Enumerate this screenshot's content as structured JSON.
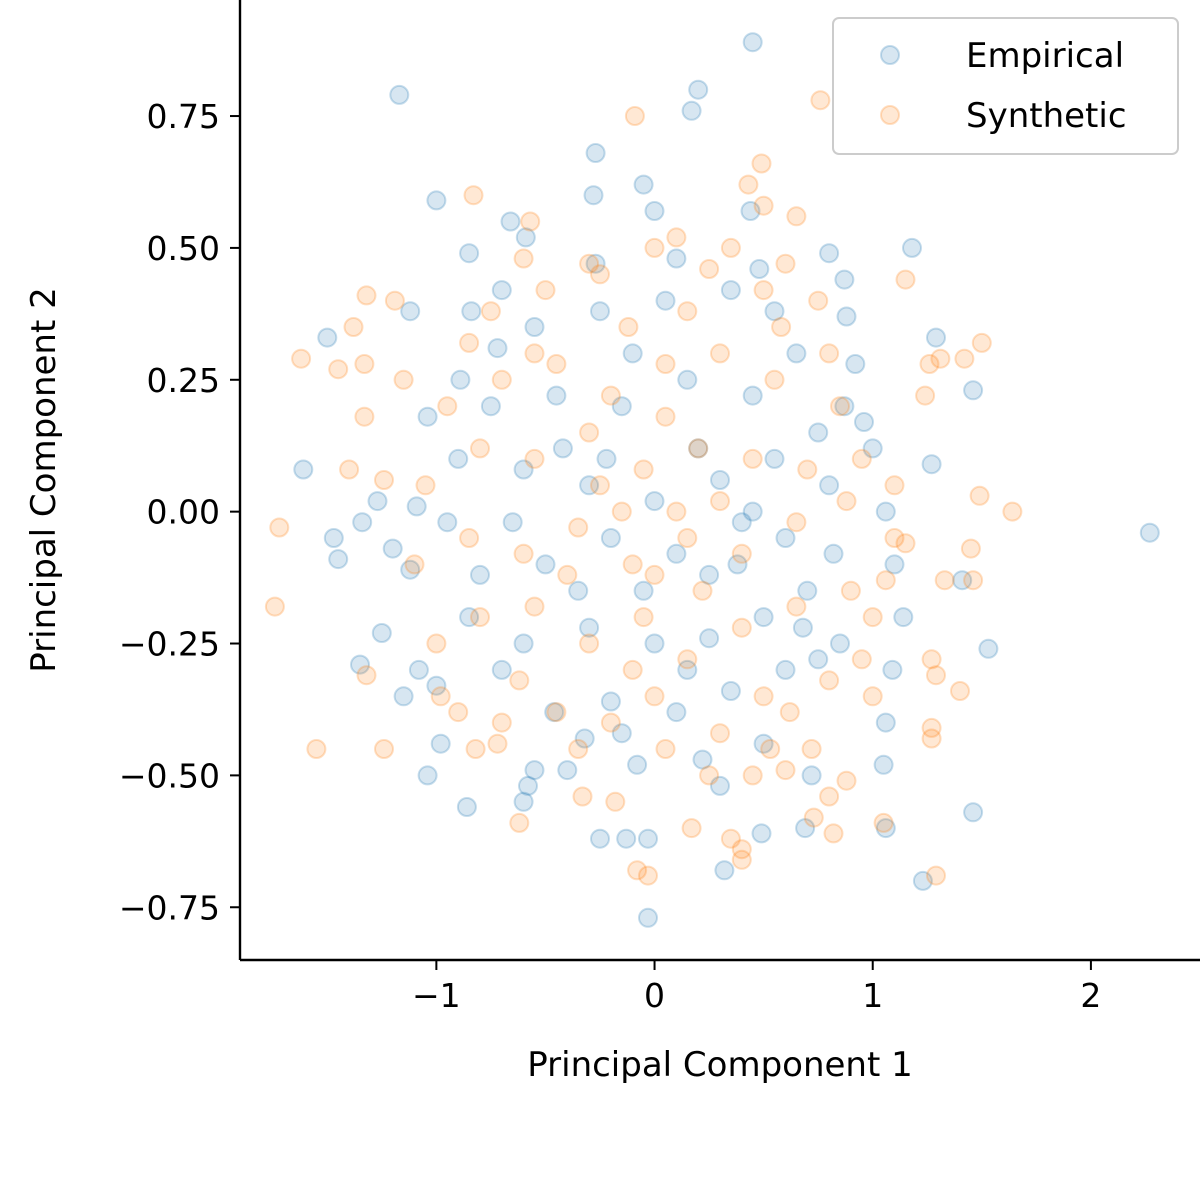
{
  "chart_data": {
    "type": "scatter",
    "title": "",
    "xlabel": "Principal Component 1",
    "ylabel": "Principal Component 2",
    "xlim": [
      -1.9,
      2.5
    ],
    "ylim": [
      -0.85,
      0.97
    ],
    "x_ticks": [
      -1,
      0,
      1,
      2
    ],
    "x_tick_labels": [
      "−1",
      "0",
      "1",
      "2"
    ],
    "y_ticks": [
      -0.75,
      -0.5,
      -0.25,
      0.0,
      0.25,
      0.5,
      0.75
    ],
    "y_tick_labels": [
      "−0.75",
      "−0.50",
      "−0.25",
      "0.00",
      "0.25",
      "0.50",
      "0.75"
    ],
    "grid": false,
    "legend_position": "top-right",
    "marker_opacity": 0.18,
    "series": [
      {
        "name": "Empirical",
        "color": "#1f77b4",
        "points": [
          [
            0.45,
            0.89
          ],
          [
            -1.17,
            0.79
          ],
          [
            0.2,
            0.8
          ],
          [
            0.17,
            0.76
          ],
          [
            -0.27,
            0.68
          ],
          [
            -0.28,
            0.6
          ],
          [
            -0.05,
            0.62
          ],
          [
            -1.0,
            0.59
          ],
          [
            0.44,
            0.57
          ],
          [
            -0.66,
            0.55
          ],
          [
            -0.59,
            0.52
          ],
          [
            0.0,
            0.57
          ],
          [
            1.18,
            0.5
          ],
          [
            -0.27,
            0.47
          ],
          [
            0.48,
            0.46
          ],
          [
            0.8,
            0.49
          ],
          [
            -1.5,
            0.33
          ],
          [
            -1.12,
            0.38
          ],
          [
            -0.84,
            0.38
          ],
          [
            -0.85,
            0.49
          ],
          [
            0.87,
            0.44
          ],
          [
            1.29,
            0.33
          ],
          [
            -0.89,
            0.25
          ],
          [
            0.88,
            0.37
          ],
          [
            -0.72,
            0.31
          ],
          [
            -1.04,
            0.18
          ],
          [
            1.46,
            0.23
          ],
          [
            0.87,
            0.2
          ],
          [
            0.96,
            0.17
          ],
          [
            1.0,
            0.12
          ],
          [
            -1.61,
            0.08
          ],
          [
            1.27,
            0.09
          ],
          [
            -1.47,
            -0.05
          ],
          [
            -1.45,
            -0.09
          ],
          [
            -1.34,
            -0.02
          ],
          [
            -1.27,
            0.02
          ],
          [
            -1.2,
            -0.07
          ],
          [
            -1.09,
            0.01
          ],
          [
            -1.12,
            -0.11
          ],
          [
            1.06,
            0.0
          ],
          [
            1.1,
            -0.1
          ],
          [
            1.41,
            -0.13
          ],
          [
            2.27,
            -0.04
          ],
          [
            -1.25,
            -0.23
          ],
          [
            -1.35,
            -0.29
          ],
          [
            -1.15,
            -0.35
          ],
          [
            -1.08,
            -0.3
          ],
          [
            -1.0,
            -0.33
          ],
          [
            1.53,
            -0.26
          ],
          [
            1.09,
            -0.3
          ],
          [
            1.14,
            -0.2
          ],
          [
            0.85,
            -0.25
          ],
          [
            -0.98,
            -0.44
          ],
          [
            -1.04,
            -0.5
          ],
          [
            -0.86,
            -0.56
          ],
          [
            1.06,
            -0.4
          ],
          [
            1.05,
            -0.48
          ],
          [
            -0.55,
            -0.49
          ],
          [
            -0.58,
            -0.52
          ],
          [
            -0.6,
            -0.55
          ],
          [
            -0.32,
            -0.43
          ],
          [
            -0.25,
            -0.62
          ],
          [
            -0.13,
            -0.62
          ],
          [
            -0.03,
            -0.62
          ],
          [
            0.3,
            -0.52
          ],
          [
            0.49,
            -0.61
          ],
          [
            0.69,
            -0.6
          ],
          [
            0.72,
            -0.5
          ],
          [
            1.06,
            -0.6
          ],
          [
            1.46,
            -0.57
          ],
          [
            0.32,
            -0.68
          ],
          [
            1.23,
            -0.7
          ],
          [
            -0.03,
            -0.77
          ],
          [
            -0.4,
            -0.49
          ],
          [
            -0.08,
            -0.48
          ],
          [
            0.22,
            -0.47
          ],
          [
            0.5,
            -0.44
          ],
          [
            -0.46,
            -0.38
          ],
          [
            -0.2,
            -0.36
          ],
          [
            0.1,
            -0.38
          ],
          [
            0.35,
            -0.34
          ],
          [
            0.6,
            -0.3
          ],
          [
            0.75,
            -0.28
          ],
          [
            -0.7,
            -0.3
          ],
          [
            -0.6,
            -0.25
          ],
          [
            -0.3,
            -0.22
          ],
          [
            0.0,
            -0.25
          ],
          [
            0.25,
            -0.24
          ],
          [
            0.5,
            -0.2
          ],
          [
            0.7,
            -0.15
          ],
          [
            -0.8,
            -0.12
          ],
          [
            -0.5,
            -0.1
          ],
          [
            -0.2,
            -0.05
          ],
          [
            0.1,
            -0.08
          ],
          [
            0.4,
            -0.02
          ],
          [
            0.6,
            -0.05
          ],
          [
            0.8,
            0.05
          ],
          [
            -0.9,
            0.1
          ],
          [
            -0.6,
            0.08
          ],
          [
            -0.3,
            0.05
          ],
          [
            0.0,
            0.02
          ],
          [
            0.3,
            0.06
          ],
          [
            0.55,
            0.1
          ],
          [
            0.75,
            0.15
          ],
          [
            -0.75,
            0.2
          ],
          [
            -0.45,
            0.22
          ],
          [
            -0.15,
            0.2
          ],
          [
            0.15,
            0.25
          ],
          [
            0.45,
            0.22
          ],
          [
            0.65,
            0.3
          ],
          [
            -0.55,
            0.35
          ],
          [
            -0.25,
            0.38
          ],
          [
            0.05,
            0.4
          ],
          [
            0.35,
            0.42
          ],
          [
            0.55,
            0.38
          ],
          [
            -0.1,
            0.3
          ],
          [
            0.2,
            0.12
          ],
          [
            -0.05,
            -0.15
          ],
          [
            0.25,
            -0.12
          ],
          [
            -0.35,
            -0.15
          ],
          [
            0.45,
            0.0
          ],
          [
            -0.65,
            -0.02
          ],
          [
            0.15,
            -0.3
          ],
          [
            -0.15,
            -0.42
          ],
          [
            0.38,
            -0.1
          ],
          [
            -0.42,
            0.12
          ],
          [
            0.68,
            -0.22
          ],
          [
            -0.85,
            -0.2
          ],
          [
            0.82,
            -0.08
          ],
          [
            -0.95,
            -0.02
          ],
          [
            0.92,
            0.28
          ],
          [
            -0.7,
            0.42
          ],
          [
            0.1,
            0.48
          ],
          [
            -0.22,
            0.1
          ]
        ]
      },
      {
        "name": "Synthetic",
        "color": "#ff7f0e",
        "points": [
          [
            0.76,
            0.78
          ],
          [
            -0.09,
            0.75
          ],
          [
            -0.83,
            0.6
          ],
          [
            0.49,
            0.66
          ],
          [
            0.43,
            0.62
          ],
          [
            0.5,
            0.58
          ],
          [
            0.65,
            0.56
          ],
          [
            -0.57,
            0.55
          ],
          [
            -1.32,
            0.41
          ],
          [
            -1.19,
            0.4
          ],
          [
            -1.38,
            0.35
          ],
          [
            -1.62,
            0.29
          ],
          [
            -1.45,
            0.27
          ],
          [
            -1.33,
            0.28
          ],
          [
            1.15,
            0.44
          ],
          [
            1.26,
            0.28
          ],
          [
            1.31,
            0.29
          ],
          [
            1.42,
            0.29
          ],
          [
            1.5,
            0.32
          ],
          [
            1.24,
            0.22
          ],
          [
            -1.33,
            0.18
          ],
          [
            -1.4,
            0.08
          ],
          [
            -1.24,
            0.06
          ],
          [
            -1.72,
            -0.03
          ],
          [
            -1.74,
            -0.18
          ],
          [
            1.49,
            0.03
          ],
          [
            1.64,
            0.0
          ],
          [
            1.45,
            -0.07
          ],
          [
            1.33,
            -0.13
          ],
          [
            1.46,
            -0.13
          ],
          [
            1.1,
            -0.05
          ],
          [
            1.15,
            -0.06
          ],
          [
            1.06,
            -0.13
          ],
          [
            1.0,
            -0.2
          ],
          [
            1.27,
            -0.28
          ],
          [
            1.29,
            -0.31
          ],
          [
            1.4,
            -0.34
          ],
          [
            1.27,
            -0.41
          ],
          [
            1.27,
            -0.43
          ],
          [
            -1.32,
            -0.31
          ],
          [
            -1.55,
            -0.45
          ],
          [
            -1.24,
            -0.45
          ],
          [
            -0.82,
            -0.45
          ],
          [
            -0.72,
            -0.44
          ],
          [
            -0.62,
            -0.59
          ],
          [
            -0.33,
            -0.54
          ],
          [
            0.72,
            -0.45
          ],
          [
            0.53,
            -0.45
          ],
          [
            0.6,
            -0.49
          ],
          [
            0.88,
            -0.51
          ],
          [
            0.8,
            -0.54
          ],
          [
            0.73,
            -0.58
          ],
          [
            0.82,
            -0.61
          ],
          [
            0.17,
            -0.6
          ],
          [
            0.35,
            -0.62
          ],
          [
            0.4,
            -0.64
          ],
          [
            0.4,
            -0.66
          ],
          [
            -0.08,
            -0.68
          ],
          [
            -0.03,
            -0.69
          ],
          [
            1.05,
            -0.59
          ],
          [
            1.29,
            -0.69
          ],
          [
            -0.9,
            -0.38
          ],
          [
            -0.7,
            -0.4
          ],
          [
            -0.45,
            -0.38
          ],
          [
            -0.2,
            -0.4
          ],
          [
            0.05,
            -0.45
          ],
          [
            0.3,
            -0.42
          ],
          [
            0.5,
            -0.35
          ],
          [
            0.8,
            -0.32
          ],
          [
            1.0,
            -0.35
          ],
          [
            -1.0,
            -0.25
          ],
          [
            -0.8,
            -0.2
          ],
          [
            -0.55,
            -0.18
          ],
          [
            -0.3,
            -0.25
          ],
          [
            -0.1,
            -0.3
          ],
          [
            0.15,
            -0.28
          ],
          [
            0.4,
            -0.22
          ],
          [
            0.65,
            -0.18
          ],
          [
            0.9,
            -0.15
          ],
          [
            -1.1,
            -0.1
          ],
          [
            -0.85,
            -0.05
          ],
          [
            -0.6,
            -0.08
          ],
          [
            -0.35,
            -0.03
          ],
          [
            -0.1,
            -0.1
          ],
          [
            0.15,
            -0.05
          ],
          [
            0.4,
            -0.08
          ],
          [
            0.65,
            -0.02
          ],
          [
            0.88,
            0.02
          ],
          [
            -1.05,
            0.05
          ],
          [
            -0.8,
            0.12
          ],
          [
            -0.55,
            0.1
          ],
          [
            -0.3,
            0.15
          ],
          [
            -0.05,
            0.08
          ],
          [
            0.2,
            0.12
          ],
          [
            0.45,
            0.1
          ],
          [
            0.7,
            0.08
          ],
          [
            0.95,
            0.1
          ],
          [
            -0.95,
            0.2
          ],
          [
            -0.7,
            0.25
          ],
          [
            -0.45,
            0.28
          ],
          [
            -0.2,
            0.22
          ],
          [
            0.05,
            0.28
          ],
          [
            0.3,
            0.3
          ],
          [
            0.55,
            0.25
          ],
          [
            0.8,
            0.3
          ],
          [
            -0.75,
            0.38
          ],
          [
            -0.5,
            0.42
          ],
          [
            -0.25,
            0.45
          ],
          [
            0.0,
            0.5
          ],
          [
            0.25,
            0.46
          ],
          [
            0.5,
            0.42
          ],
          [
            0.75,
            0.4
          ],
          [
            -0.6,
            0.48
          ],
          [
            -0.3,
            0.47
          ],
          [
            0.1,
            0.52
          ],
          [
            0.35,
            0.5
          ],
          [
            0.6,
            0.47
          ],
          [
            0.0,
            -0.12
          ],
          [
            -0.15,
            0.0
          ],
          [
            0.1,
            0.0
          ],
          [
            -0.05,
            -0.2
          ],
          [
            0.22,
            -0.15
          ],
          [
            -0.25,
            0.05
          ],
          [
            0.05,
            0.18
          ],
          [
            -0.4,
            -0.12
          ],
          [
            0.3,
            0.02
          ],
          [
            -0.12,
            0.35
          ],
          [
            0.15,
            0.38
          ],
          [
            -0.55,
            0.3
          ],
          [
            0.58,
            0.35
          ],
          [
            -0.85,
            0.32
          ],
          [
            0.85,
            0.2
          ],
          [
            -1.15,
            0.25
          ],
          [
            1.1,
            0.05
          ],
          [
            -0.98,
            -0.35
          ],
          [
            0.95,
            -0.28
          ],
          [
            -0.35,
            -0.45
          ],
          [
            0.45,
            -0.5
          ],
          [
            -0.62,
            -0.32
          ],
          [
            0.62,
            -0.38
          ],
          [
            0.0,
            -0.35
          ],
          [
            -0.18,
            -0.55
          ],
          [
            0.25,
            -0.5
          ]
        ]
      }
    ]
  }
}
